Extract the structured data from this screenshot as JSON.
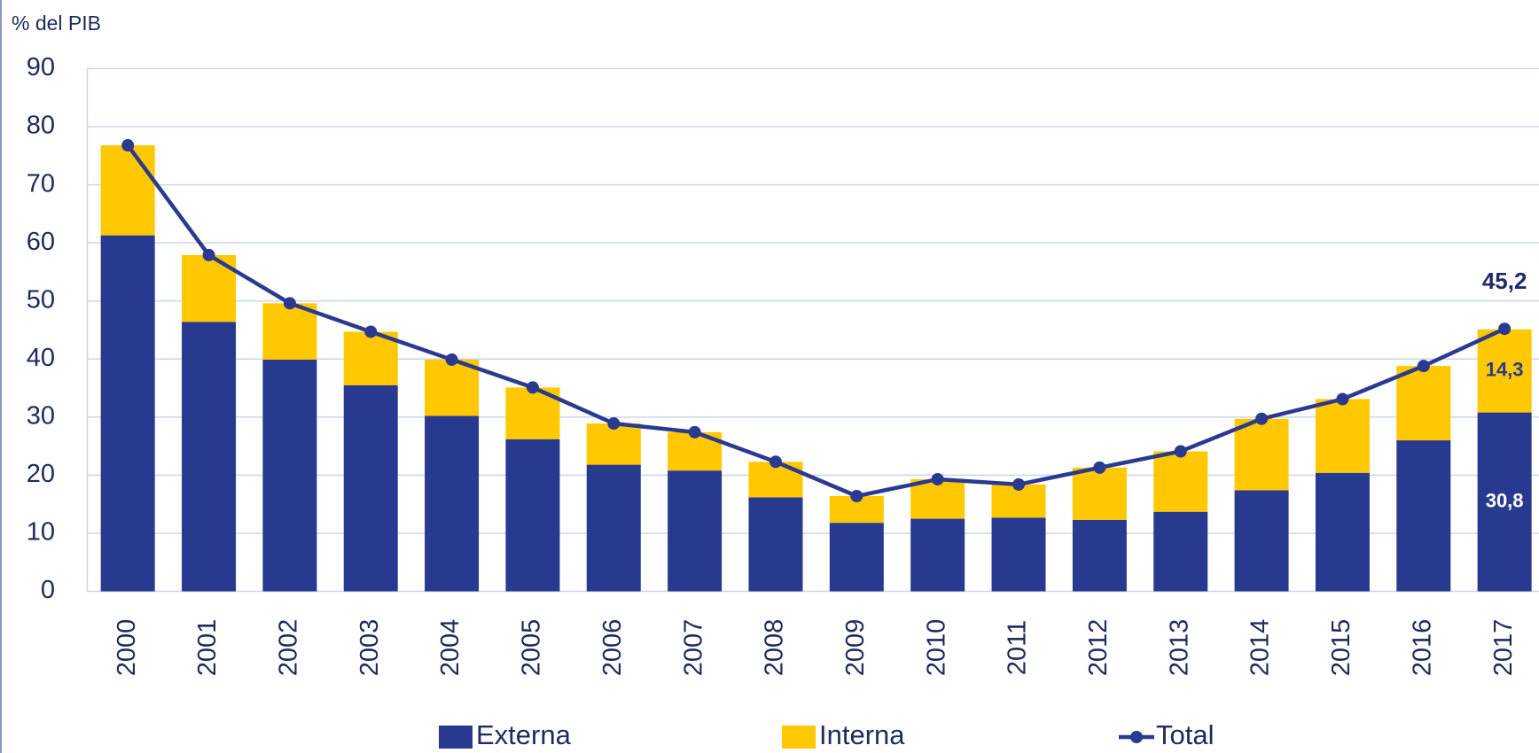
{
  "chart_data": {
    "type": "bar",
    "stacked": true,
    "y_label": "% del PIB",
    "categories": [
      "2000",
      "2001",
      "2002",
      "2003",
      "2004",
      "2005",
      "2006",
      "2007",
      "2008",
      "2009",
      "2010",
      "2011",
      "2012",
      "2013",
      "2014",
      "2015",
      "2016",
      "2017"
    ],
    "series": [
      {
        "name": "Externa",
        "type": "bar",
        "color": "#283a8f",
        "label_color": "#ffffff",
        "values": [
          61.3,
          46.4,
          39.9,
          35.5,
          30.2,
          26.2,
          21.8,
          20.8,
          16.2,
          11.8,
          12.5,
          12.7,
          12.3,
          13.7,
          17.4,
          20.4,
          26.0,
          30.8
        ],
        "value_labels": [
          null,
          null,
          null,
          null,
          null,
          null,
          null,
          null,
          null,
          null,
          null,
          null,
          null,
          null,
          null,
          null,
          null,
          "30,8"
        ]
      },
      {
        "name": "Interna",
        "type": "bar",
        "color": "#ffc800",
        "label_color": "#283a8f",
        "values": [
          15.5,
          11.5,
          9.7,
          9.2,
          9.7,
          8.9,
          7.1,
          6.6,
          6.1,
          4.6,
          6.8,
          5.7,
          9.0,
          10.4,
          12.3,
          12.7,
          12.8,
          14.3
        ],
        "value_labels": [
          null,
          null,
          null,
          null,
          null,
          null,
          null,
          null,
          null,
          null,
          null,
          null,
          null,
          null,
          null,
          null,
          null,
          "14,3"
        ]
      },
      {
        "name": "Total",
        "type": "line",
        "color": "#2b3990",
        "label_color": "#1f2a6b",
        "values": [
          76.8,
          57.9,
          49.6,
          44.7,
          39.9,
          35.1,
          28.9,
          27.4,
          22.3,
          16.4,
          19.3,
          18.4,
          21.3,
          24.1,
          29.7,
          33.1,
          38.8,
          45.2
        ],
        "value_labels": [
          null,
          null,
          null,
          null,
          null,
          null,
          null,
          null,
          null,
          null,
          null,
          null,
          null,
          null,
          null,
          null,
          null,
          "45,2"
        ]
      }
    ],
    "ylim": [
      0,
      90
    ],
    "yticks": [
      0,
      10,
      20,
      30,
      40,
      50,
      60,
      70,
      80,
      90
    ],
    "grid": true,
    "legend": "bottom"
  }
}
